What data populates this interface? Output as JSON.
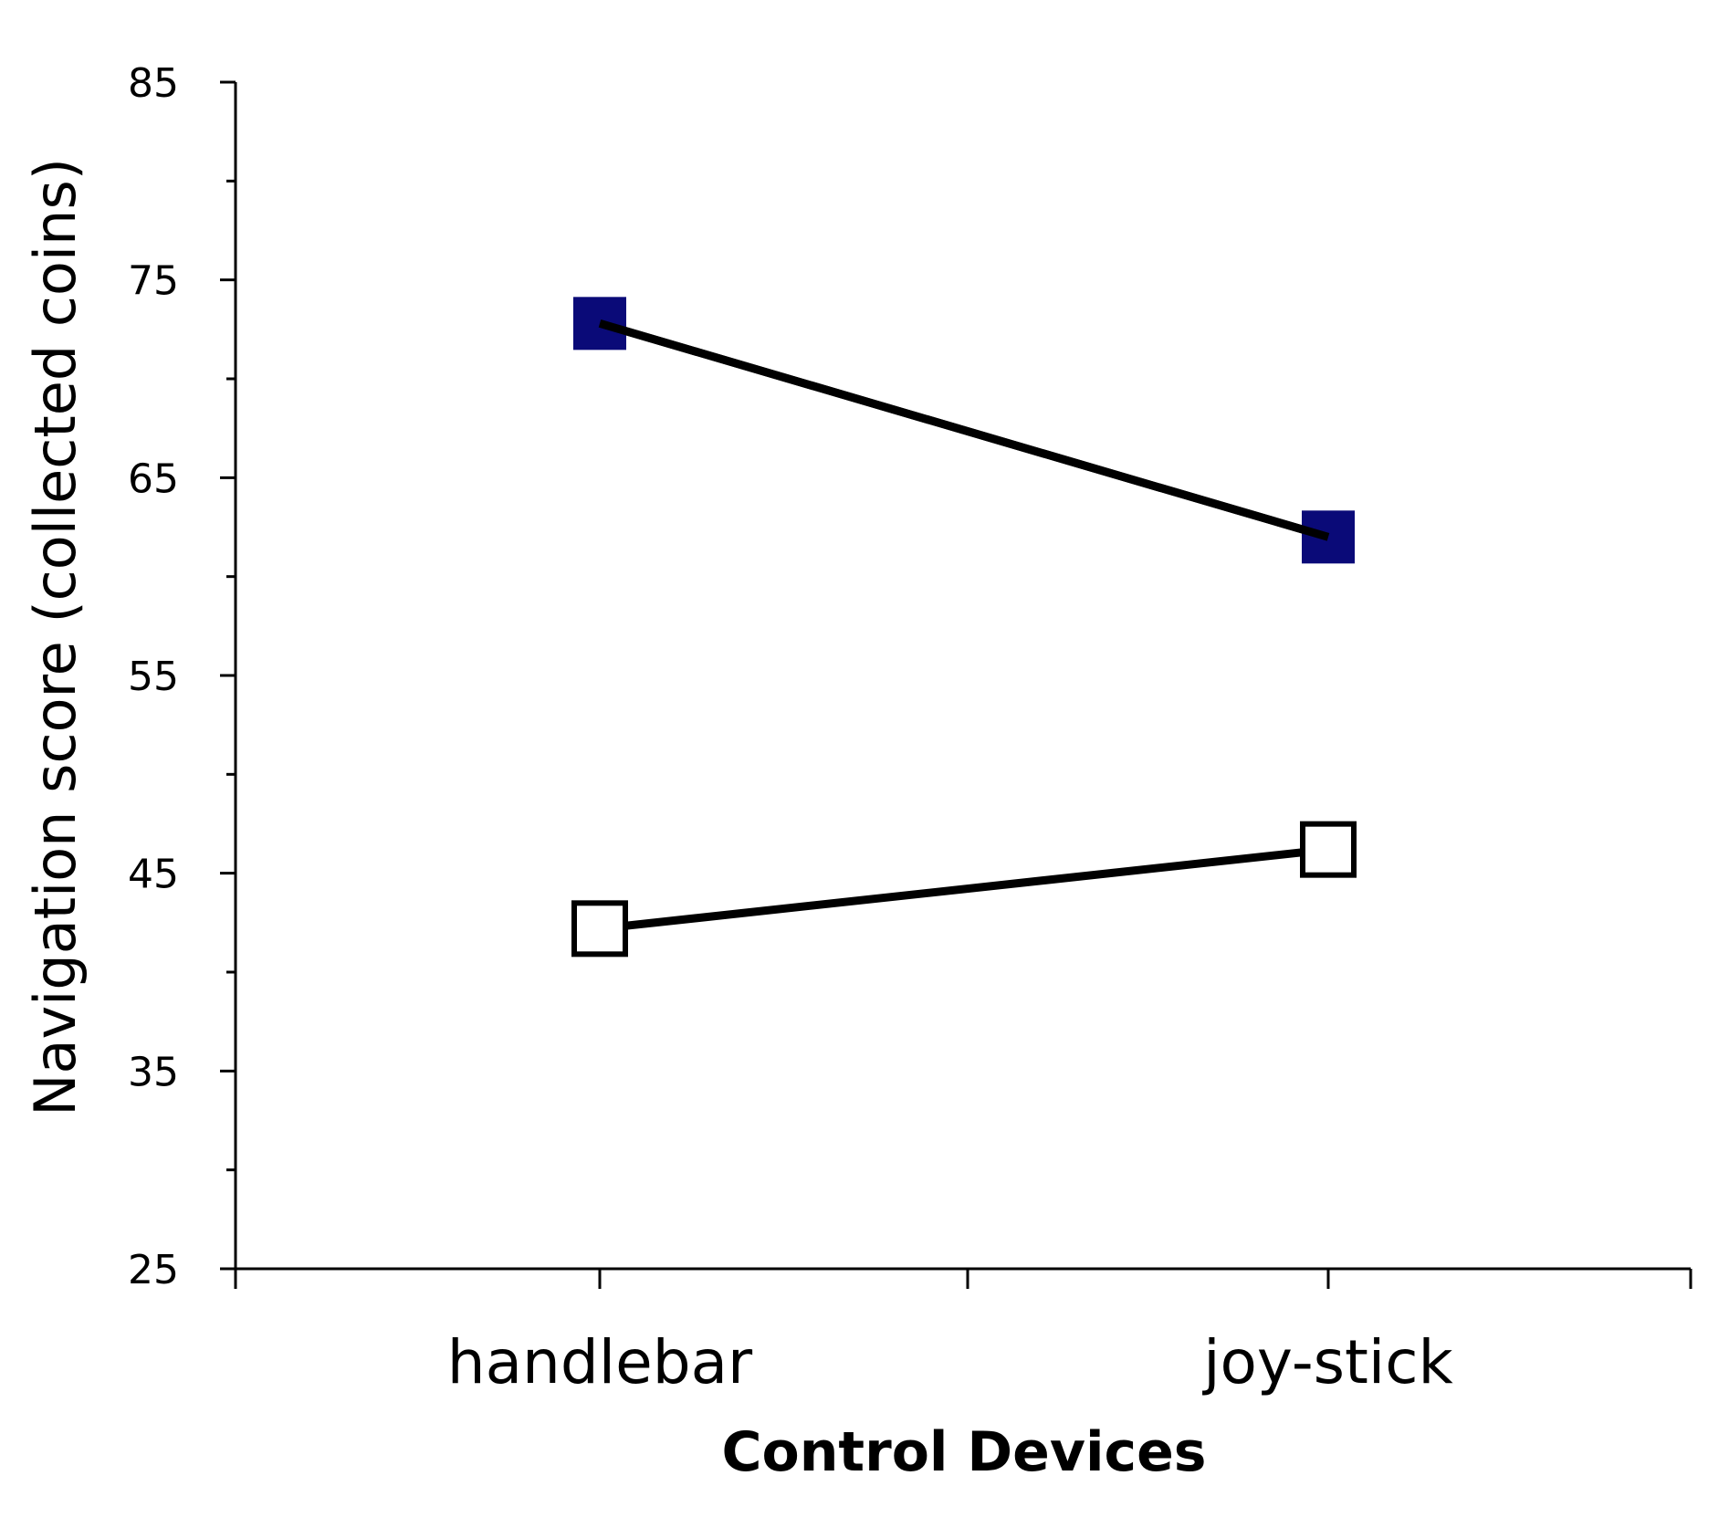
{
  "chart_data": {
    "type": "line",
    "title": "",
    "xlabel": "Control Devices",
    "ylabel": "Navigation score (collected coins)",
    "categories": [
      "handlebar",
      "joy-stick"
    ],
    "ylim": [
      25,
      85
    ],
    "yticks": [
      25,
      35,
      45,
      55,
      65,
      75,
      85
    ],
    "grid": false,
    "legend": "none",
    "series": [
      {
        "values": [
          72.8,
          62.0
        ],
        "marker": "square-filled",
        "marker_color": "#0a0a78",
        "line_color": "#000000"
      },
      {
        "values": [
          42.2,
          46.2
        ],
        "marker": "square-open",
        "marker_color": "#ffffff",
        "line_color": "#000000"
      }
    ]
  }
}
